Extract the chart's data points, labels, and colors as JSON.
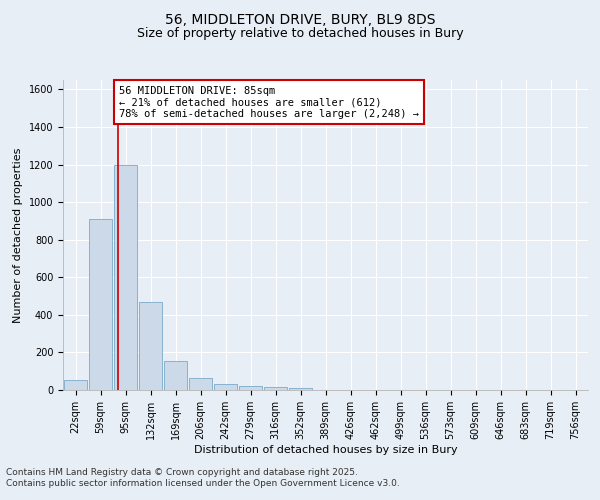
{
  "title_line1": "56, MIDDLETON DRIVE, BURY, BL9 8DS",
  "title_line2": "Size of property relative to detached houses in Bury",
  "xlabel": "Distribution of detached houses by size in Bury",
  "ylabel": "Number of detached properties",
  "bar_color": "#ccd9e8",
  "bar_edge_color": "#7aaac8",
  "background_color": "#e8eef5",
  "grid_color": "#ffffff",
  "annotation_box_color": "#cc0000",
  "annotation_text": "56 MIDDLETON DRIVE: 85sqm\n← 21% of detached houses are smaller (612)\n78% of semi-detached houses are larger (2,248) →",
  "vline_idx": 1.7,
  "vline_color": "#cc0000",
  "categories": [
    "22sqm",
    "59sqm",
    "95sqm",
    "132sqm",
    "169sqm",
    "206sqm",
    "242sqm",
    "279sqm",
    "316sqm",
    "352sqm",
    "389sqm",
    "426sqm",
    "462sqm",
    "499sqm",
    "536sqm",
    "573sqm",
    "609sqm",
    "646sqm",
    "683sqm",
    "719sqm",
    "756sqm"
  ],
  "values": [
    55,
    910,
    1195,
    470,
    155,
    62,
    30,
    22,
    15,
    13,
    0,
    0,
    0,
    0,
    0,
    0,
    0,
    0,
    0,
    0,
    0
  ],
  "ylim": [
    0,
    1650
  ],
  "yticks": [
    0,
    200,
    400,
    600,
    800,
    1000,
    1200,
    1400,
    1600
  ],
  "footer_text": "Contains HM Land Registry data © Crown copyright and database right 2025.\nContains public sector information licensed under the Open Government Licence v3.0.",
  "title_fontsize": 10,
  "subtitle_fontsize": 9,
  "axis_label_fontsize": 8,
  "tick_fontsize": 7,
  "annotation_fontsize": 7.5,
  "footer_fontsize": 6.5
}
